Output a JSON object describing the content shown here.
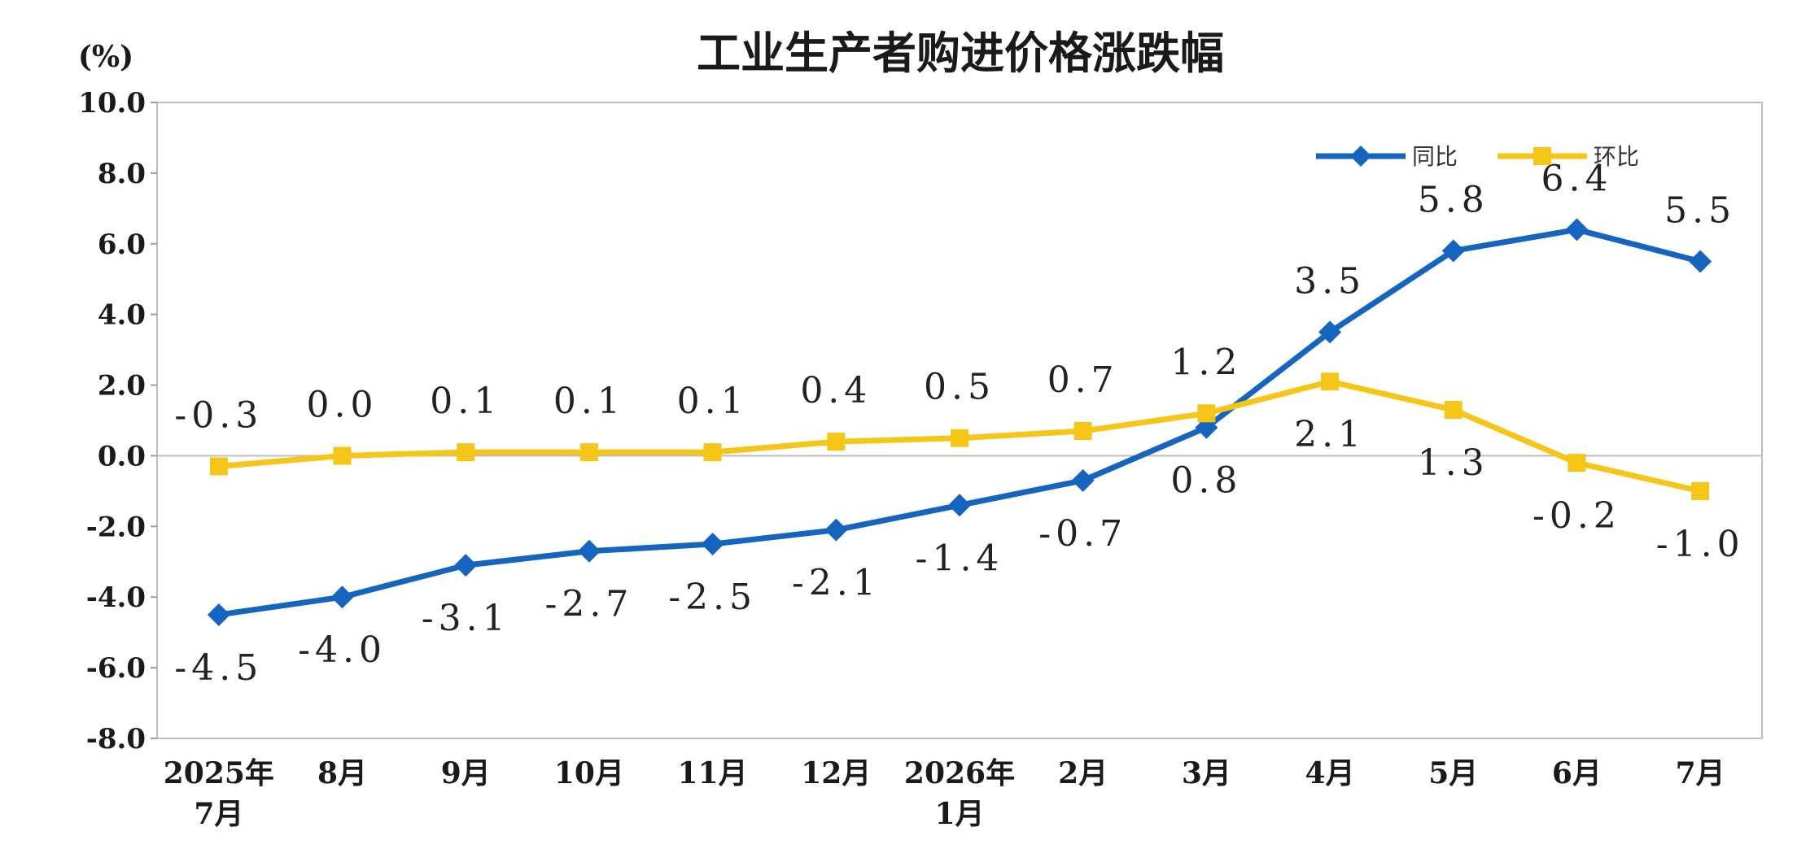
{
  "chart_data": {
    "type": "line",
    "title": "工业生产者购进价格涨跌幅",
    "unit": "(%)",
    "ylim": [
      -8.0,
      10.0
    ],
    "yticks": [
      "10.0",
      "8.0",
      "6.0",
      "4.0",
      "2.0",
      "0.0",
      "-2.0",
      "-4.0",
      "-6.0",
      "-8.0"
    ],
    "categories": [
      [
        "2025年",
        "7月"
      ],
      [
        "8月"
      ],
      [
        "9月"
      ],
      [
        "10月"
      ],
      [
        "11月"
      ],
      [
        "12月"
      ],
      [
        "2026年",
        "1月"
      ],
      [
        "2月"
      ],
      [
        "3月"
      ],
      [
        "4月"
      ],
      [
        "5月"
      ],
      [
        "6月"
      ],
      [
        "7月"
      ]
    ],
    "legend_position": "top-right",
    "series": [
      {
        "name": "同比",
        "color": "#1565C0",
        "marker": "diamond",
        "values": [
          -4.5,
          -4.0,
          -3.1,
          -2.7,
          -2.5,
          -2.1,
          -1.4,
          -0.7,
          0.8,
          3.5,
          5.8,
          6.4,
          5.5
        ],
        "labels": [
          "-4.5",
          "-4.0",
          "-3.1",
          "-2.7",
          "-2.5",
          "-2.1",
          "-1.4",
          "-0.7",
          "0.8",
          "3.5",
          "5.8",
          "6.4",
          "5.5"
        ]
      },
      {
        "name": "环比",
        "color": "#F5C518",
        "marker": "square",
        "values": [
          -0.3,
          0.0,
          0.1,
          0.1,
          0.1,
          0.4,
          0.5,
          0.7,
          1.2,
          2.1,
          1.3,
          -0.2,
          -1.0
        ],
        "labels": [
          "-0.3",
          "0.0",
          "0.1",
          "0.1",
          "0.1",
          "0.4",
          "0.5",
          "0.7",
          "1.2",
          "2.1",
          "1.3",
          "-0.2",
          "-1.0"
        ]
      }
    ]
  }
}
